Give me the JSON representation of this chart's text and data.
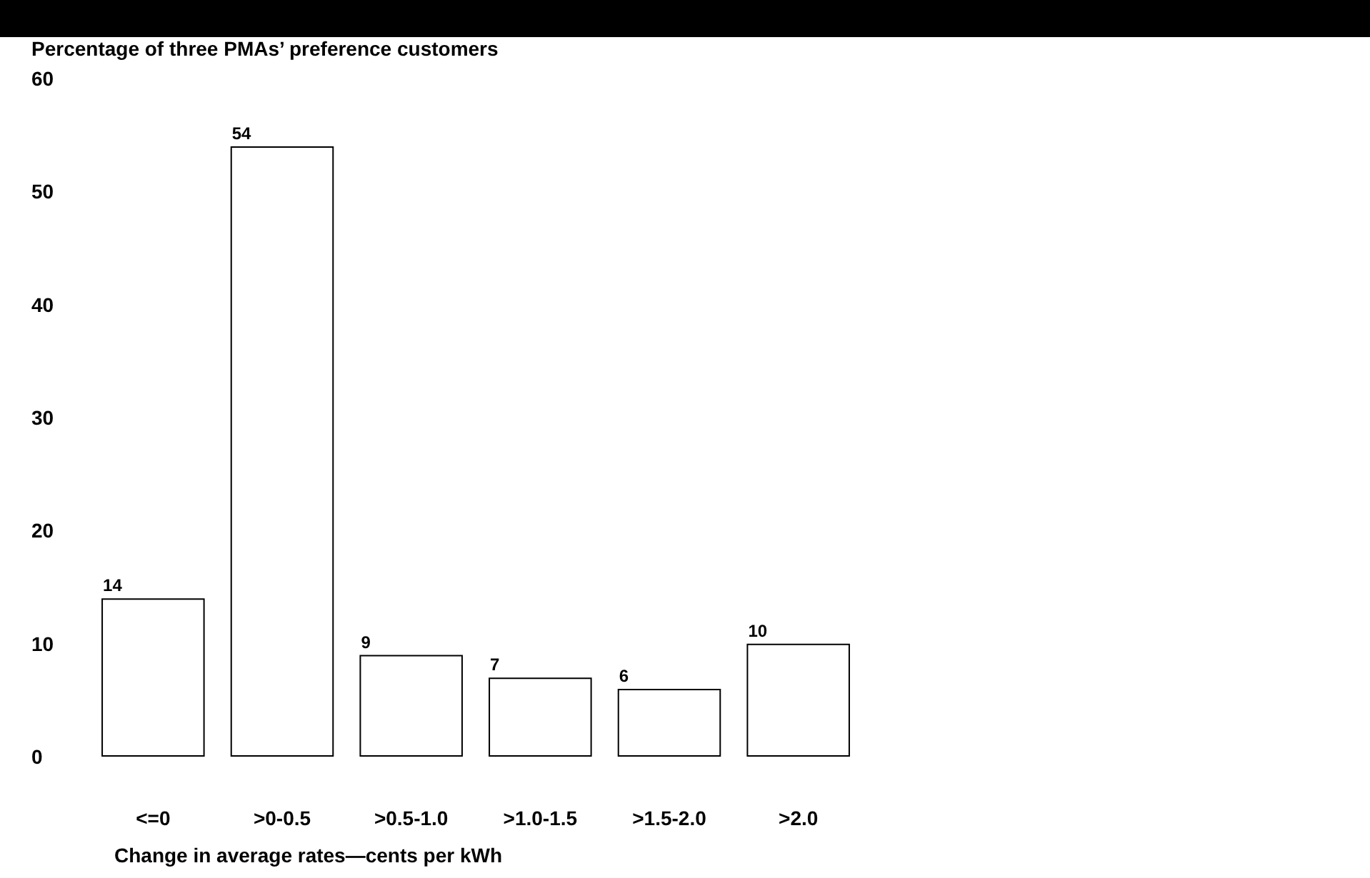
{
  "chart_data": {
    "type": "bar",
    "ylabel": "Percentage of three PMAs’ preference customers",
    "xlabel": "Change in average rates—cents per kWh",
    "categories": [
      "<=0",
      ">0-0.5",
      ">0.5-1.0",
      ">1.0-1.5",
      ">1.5-2.0",
      ">2.0"
    ],
    "values": [
      14,
      54,
      9,
      7,
      6,
      10
    ],
    "color": "#ffffff",
    "ylim": [
      0,
      60
    ],
    "yticks": [
      0,
      10,
      20,
      30,
      40,
      50,
      60
    ],
    "grid": false,
    "data_labels": true
  }
}
